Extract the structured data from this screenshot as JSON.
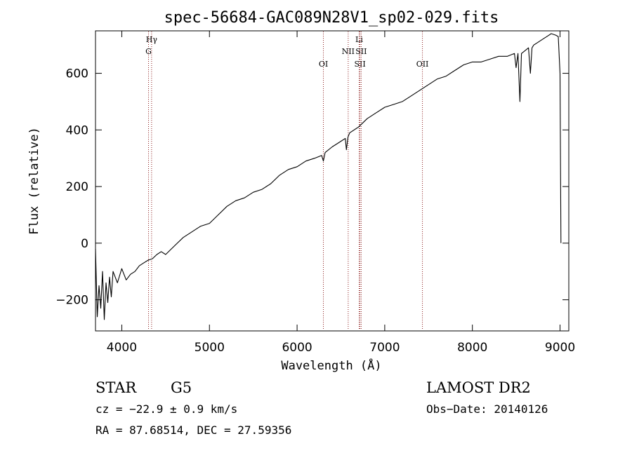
{
  "chart_data": {
    "type": "line",
    "title": "spec-56684-GAC089N28V1_sp02-029.fits",
    "xlabel": "Wavelength (Å)",
    "ylabel": "Flux (relative)",
    "xlim": [
      3700,
      9100
    ],
    "ylim": [
      -310,
      750
    ],
    "xticks": [
      4000,
      5000,
      6000,
      7000,
      8000,
      9000
    ],
    "yticks": [
      -200,
      0,
      200,
      400,
      600
    ],
    "grid": false,
    "line_color": "#000000",
    "marker_color": "#8b1a1a",
    "spectrum": {
      "x": [
        3700,
        3720,
        3740,
        3760,
        3780,
        3800,
        3820,
        3840,
        3860,
        3880,
        3900,
        3950,
        4000,
        4050,
        4100,
        4150,
        4200,
        4250,
        4300,
        4350,
        4400,
        4450,
        4500,
        4600,
        4700,
        4800,
        4900,
        5000,
        5100,
        5200,
        5300,
        5400,
        5500,
        5600,
        5700,
        5800,
        5900,
        6000,
        6100,
        6200,
        6280,
        6300,
        6320,
        6400,
        6500,
        6550,
        6563,
        6580,
        6600,
        6700,
        6800,
        6900,
        7000,
        7100,
        7200,
        7300,
        7400,
        7500,
        7600,
        7700,
        7800,
        7900,
        8000,
        8100,
        8200,
        8300,
        8400,
        8480,
        8498,
        8520,
        8542,
        8560,
        8600,
        8640,
        8662,
        8680,
        8700,
        8750,
        8800,
        8850,
        8900,
        8950,
        8980,
        9000,
        9010
      ],
      "y": [
        -20,
        -260,
        -150,
        -230,
        -100,
        -270,
        -140,
        -210,
        -120,
        -190,
        -100,
        -140,
        -90,
        -130,
        -110,
        -100,
        -80,
        -70,
        -60,
        -55,
        -40,
        -30,
        -40,
        -10,
        20,
        40,
        60,
        70,
        100,
        130,
        150,
        160,
        180,
        190,
        210,
        240,
        260,
        270,
        290,
        300,
        310,
        290,
        320,
        340,
        360,
        370,
        330,
        375,
        390,
        410,
        440,
        460,
        480,
        490,
        500,
        520,
        540,
        560,
        580,
        590,
        610,
        630,
        640,
        640,
        650,
        660,
        660,
        670,
        620,
        670,
        500,
        670,
        680,
        690,
        600,
        690,
        700,
        710,
        720,
        730,
        740,
        735,
        730,
        600,
        0
      ]
    },
    "lines": [
      {
        "label": "Hγ",
        "x": 4340,
        "row": 1
      },
      {
        "label": "G",
        "x": 4305,
        "row": 2
      },
      {
        "label": "OI",
        "x": 6300,
        "row": 3
      },
      {
        "label": "NII",
        "x": 6583,
        "row": 2
      },
      {
        "label": "Li",
        "x": 6708,
        "row": 1
      },
      {
        "label": "SII",
        "x": 6717,
        "row": 3
      },
      {
        "label": "SII",
        "x": 6731,
        "row": 2
      },
      {
        "label": "OII",
        "x": 7430,
        "row": 3
      }
    ]
  },
  "footer": {
    "class_label": "STAR",
    "subclass": "G5",
    "survey": "LAMOST DR2",
    "cz": "cz = −22.9 ± 0.9 km/s",
    "obs_date": "Obs−Date: 20140126",
    "coords": "RA =  87.68514, DEC =  27.59356"
  }
}
